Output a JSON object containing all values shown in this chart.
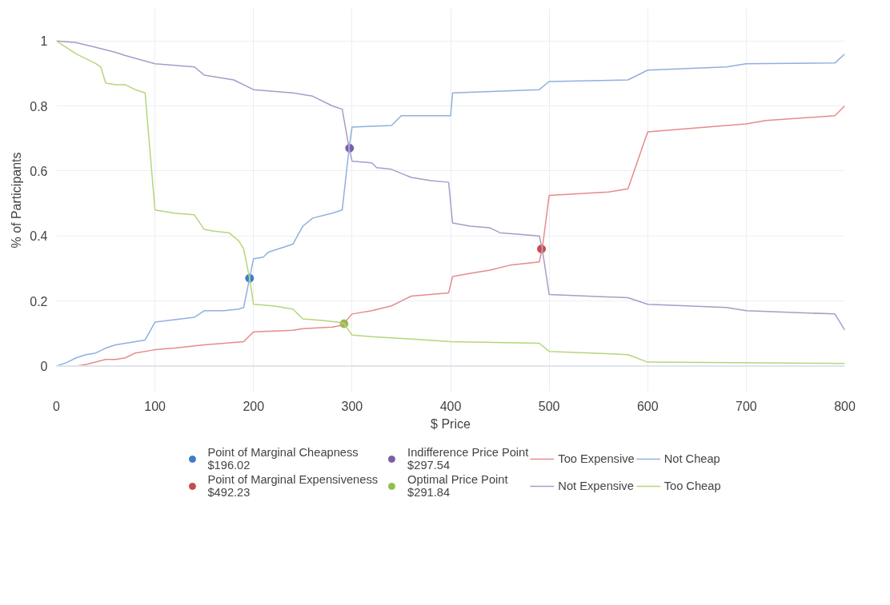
{
  "chart_data": {
    "type": "line",
    "xlabel": "$ Price",
    "ylabel": "% of Participants",
    "xlim": [
      0,
      800
    ],
    "ylim": [
      -0.08,
      1.1
    ],
    "xticks": [
      0,
      100,
      200,
      300,
      400,
      500,
      600,
      700,
      800
    ],
    "yticks": [
      0,
      {
        "value": 0.2,
        "label": "0.2"
      },
      {
        "value": 0.4,
        "label": "0.4"
      },
      {
        "value": 0.6,
        "label": "0.6"
      },
      {
        "value": 0.8,
        "label": "0.8"
      },
      1
    ],
    "grid": true,
    "legend": "bottom",
    "line_style": "solid",
    "series": [
      {
        "type": "scatter",
        "name": "Point of Marginal Cheapness\n$196.02",
        "color": "#3e7cc8",
        "x": [
          196.02
        ],
        "values": [
          0.27
        ]
      },
      {
        "type": "scatter",
        "name": "Point of Marginal Expensiveness\n$492.23",
        "color": "#c94a4a",
        "x": [
          492.23
        ],
        "values": [
          0.36
        ]
      },
      {
        "type": "scatter",
        "name": "Indifference Price Point\n$297.54",
        "color": "#7b5ea7",
        "x": [
          297.54
        ],
        "values": [
          0.67
        ]
      },
      {
        "type": "scatter",
        "name": "Optimal Price Point\n$291.84",
        "color": "#8fbf4a",
        "x": [
          291.84
        ],
        "values": [
          0.13
        ]
      },
      {
        "name": "Too Expensive",
        "color": "#e88a8a",
        "x": [
          0,
          20,
          30,
          50,
          60,
          70,
          80,
          100,
          120,
          150,
          190,
          200,
          240,
          250,
          280,
          290,
          300,
          320,
          340,
          350,
          360,
          398,
          402,
          420,
          440,
          460,
          490,
          493,
          500,
          560,
          580,
          600,
          640,
          700,
          720,
          790,
          800
        ],
        "values": [
          0,
          0,
          0.005,
          0.02,
          0.02,
          0.025,
          0.04,
          0.05,
          0.055,
          0.065,
          0.075,
          0.105,
          0.11,
          0.115,
          0.12,
          0.125,
          0.16,
          0.17,
          0.185,
          0.2,
          0.215,
          0.225,
          0.275,
          0.285,
          0.295,
          0.31,
          0.32,
          0.36,
          0.525,
          0.535,
          0.545,
          0.72,
          0.73,
          0.745,
          0.755,
          0.77,
          0.8
        ]
      },
      {
        "name": "Not Expensive",
        "color": "#a89cc8",
        "x": [
          0,
          20,
          40,
          60,
          70,
          100,
          140,
          150,
          180,
          200,
          240,
          260,
          280,
          290,
          297,
          300,
          320,
          325,
          340,
          360,
          380,
          398,
          402,
          420,
          440,
          450,
          470,
          490,
          493,
          500,
          580,
          600,
          680,
          700,
          790,
          800
        ],
        "values": [
          1,
          0.995,
          0.98,
          0.965,
          0.955,
          0.93,
          0.92,
          0.895,
          0.88,
          0.85,
          0.84,
          0.83,
          0.8,
          0.79,
          0.67,
          0.63,
          0.625,
          0.61,
          0.605,
          0.58,
          0.57,
          0.565,
          0.44,
          0.43,
          0.425,
          0.41,
          0.405,
          0.4,
          0.36,
          0.22,
          0.21,
          0.19,
          0.18,
          0.17,
          0.16,
          0.11
        ]
      },
      {
        "name": "Not Cheap",
        "color": "#8fb0e0",
        "x": [
          0,
          10,
          20,
          30,
          40,
          50,
          60,
          80,
          90,
          100,
          140,
          150,
          170,
          185,
          190,
          196,
          200,
          210,
          215,
          240,
          250,
          260,
          280,
          290,
          297,
          300,
          340,
          350,
          400,
          402,
          490,
          500,
          580,
          600,
          680,
          700,
          790,
          800
        ],
        "values": [
          0,
          0.01,
          0.025,
          0.035,
          0.04,
          0.055,
          0.065,
          0.075,
          0.08,
          0.135,
          0.15,
          0.17,
          0.17,
          0.175,
          0.18,
          0.27,
          0.33,
          0.335,
          0.35,
          0.375,
          0.43,
          0.455,
          0.47,
          0.48,
          0.67,
          0.735,
          0.74,
          0.77,
          0.77,
          0.84,
          0.85,
          0.875,
          0.88,
          0.91,
          0.92,
          0.93,
          0.932,
          0.96
        ]
      },
      {
        "name": "Too Cheap",
        "color": "#b5d67a",
        "x": [
          0,
          10,
          20,
          40,
          45,
          50,
          60,
          70,
          80,
          90,
          100,
          120,
          140,
          150,
          160,
          175,
          185,
          190,
          196,
          200,
          220,
          240,
          250,
          270,
          285,
          292,
          300,
          320,
          350,
          400,
          490,
          500,
          580,
          600,
          800
        ],
        "values": [
          1,
          0.98,
          0.96,
          0.93,
          0.92,
          0.87,
          0.865,
          0.865,
          0.85,
          0.84,
          0.48,
          0.47,
          0.465,
          0.42,
          0.415,
          0.41,
          0.385,
          0.36,
          0.27,
          0.19,
          0.185,
          0.175,
          0.145,
          0.14,
          0.135,
          0.13,
          0.095,
          0.09,
          0.085,
          0.075,
          0.07,
          0.045,
          0.035,
          0.012,
          0.008
        ]
      }
    ]
  }
}
